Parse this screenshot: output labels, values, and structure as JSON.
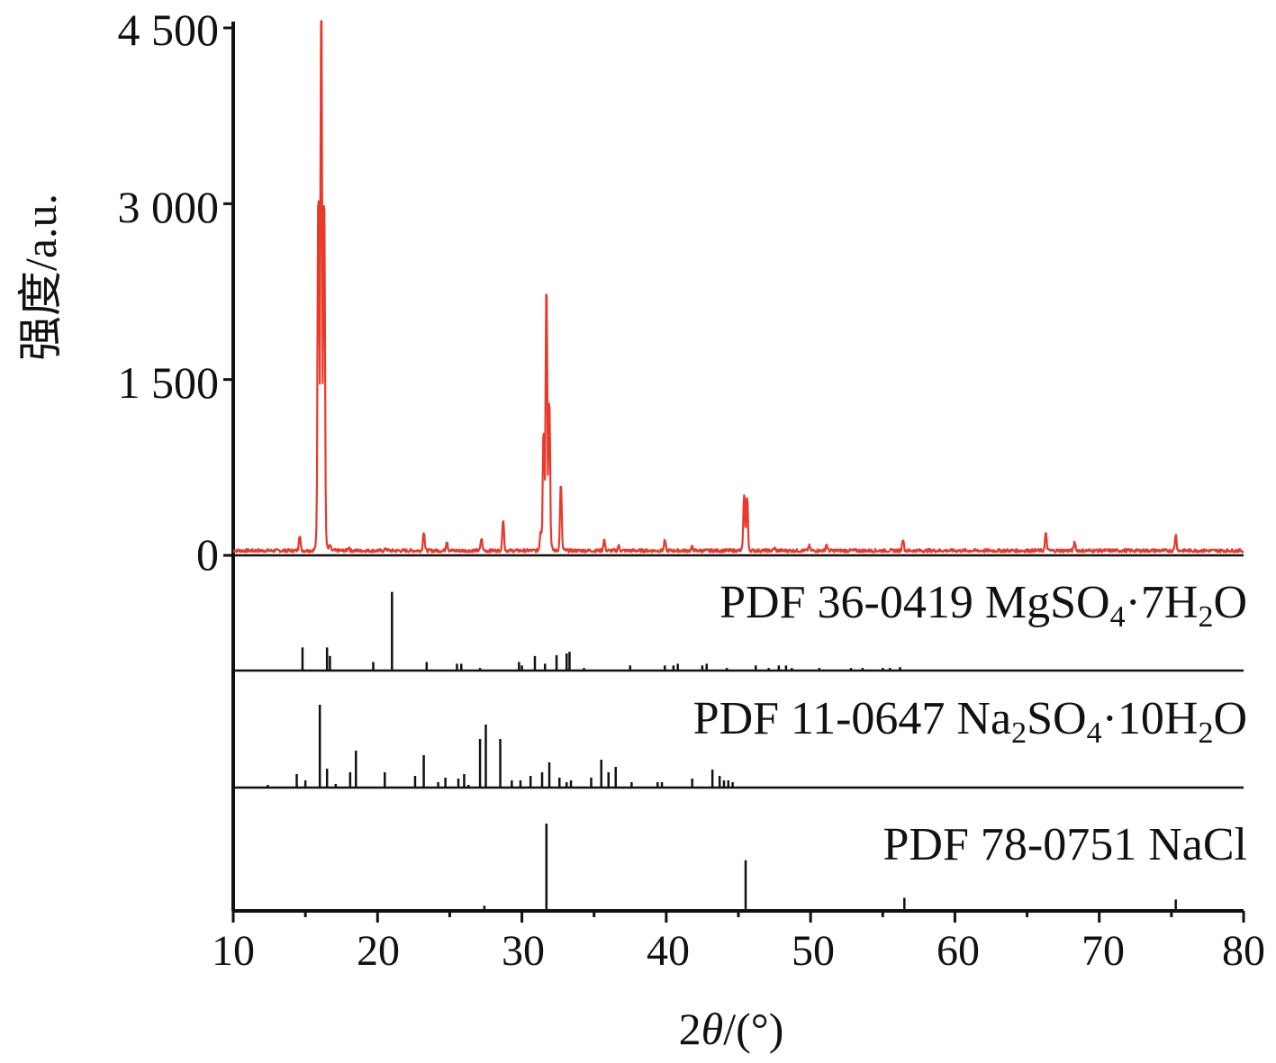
{
  "chart_data": {
    "type": "line",
    "xlabel": {
      "pre": "2",
      "theta": "θ",
      "post": "/(°)"
    },
    "ylabel": "强度/a.u.",
    "xlim": [
      10,
      80
    ],
    "ylim": [
      0,
      4500
    ],
    "x_ticks": [
      "10",
      "20",
      "30",
      "40",
      "50",
      "60",
      "70",
      "80"
    ],
    "y_ticks": [
      "0",
      "1 500",
      "3 000",
      "4 500"
    ],
    "colors": {
      "sample": "#e8392b",
      "reference": "#111111"
    },
    "sample": {
      "baseline": 40,
      "peaks": [
        [
          14.6,
          170
        ],
        [
          15.9,
          2950
        ],
        [
          16.1,
          4500
        ],
        [
          16.3,
          2900
        ],
        [
          16.7,
          80
        ],
        [
          18.0,
          70
        ],
        [
          20.6,
          60
        ],
        [
          23.2,
          200
        ],
        [
          24.8,
          120
        ],
        [
          27.2,
          140
        ],
        [
          28.7,
          300
        ],
        [
          31.3,
          190
        ],
        [
          31.5,
          1000
        ],
        [
          31.7,
          2200
        ],
        [
          31.9,
          1250
        ],
        [
          32.7,
          580
        ],
        [
          35.7,
          130
        ],
        [
          36.7,
          80
        ],
        [
          39.9,
          120
        ],
        [
          41.8,
          70
        ],
        [
          45.4,
          500
        ],
        [
          45.6,
          480
        ],
        [
          47.5,
          60
        ],
        [
          49.9,
          80
        ],
        [
          51.1,
          90
        ],
        [
          56.4,
          140
        ],
        [
          62.5,
          40
        ],
        [
          66.3,
          180
        ],
        [
          68.3,
          110
        ],
        [
          75.3,
          170
        ]
      ]
    },
    "references": [
      {
        "label": {
          "pre": "PDF 36-0419 MgSO",
          "sub1": "4",
          "mid": "·7H",
          "sub2": "2",
          "post": "O"
        },
        "sticks": [
          [
            14.8,
            27
          ],
          [
            16.5,
            27
          ],
          [
            16.7,
            17
          ],
          [
            19.7,
            10
          ],
          [
            21.0,
            92
          ],
          [
            23.4,
            10
          ],
          [
            25.5,
            8
          ],
          [
            25.8,
            8
          ],
          [
            27.1,
            3
          ],
          [
            29.8,
            10
          ],
          [
            30.0,
            6
          ],
          [
            30.9,
            17
          ],
          [
            31.6,
            8
          ],
          [
            32.4,
            18
          ],
          [
            33.1,
            20
          ],
          [
            33.3,
            22
          ],
          [
            34.3,
            3
          ],
          [
            37.5,
            6
          ],
          [
            39.9,
            6
          ],
          [
            40.5,
            6
          ],
          [
            40.8,
            8
          ],
          [
            42.5,
            6
          ],
          [
            42.8,
            8
          ],
          [
            44.2,
            3
          ],
          [
            46.2,
            6
          ],
          [
            47.1,
            3
          ],
          [
            47.8,
            6
          ],
          [
            48.3,
            6
          ],
          [
            48.7,
            3
          ],
          [
            50.6,
            3
          ],
          [
            52.8,
            3
          ],
          [
            53.6,
            3
          ],
          [
            55.0,
            3
          ],
          [
            55.5,
            3
          ],
          [
            56.2,
            4
          ]
        ]
      },
      {
        "label": {
          "pre": "PDF 11-0647 Na",
          "sub1": "2",
          "mid": "SO",
          "sub2": "4",
          "mid2": "·10H",
          "sub3": "2",
          "post": "O"
        },
        "sticks": [
          [
            12.4,
            3
          ],
          [
            14.4,
            15
          ],
          [
            15.0,
            8
          ],
          [
            16.0,
            92
          ],
          [
            16.5,
            21
          ],
          [
            17.1,
            4
          ],
          [
            18.1,
            17
          ],
          [
            18.5,
            41
          ],
          [
            20.5,
            17
          ],
          [
            22.6,
            13
          ],
          [
            23.2,
            36
          ],
          [
            24.2,
            6
          ],
          [
            24.7,
            11
          ],
          [
            25.6,
            10
          ],
          [
            26.0,
            15
          ],
          [
            26.3,
            3
          ],
          [
            27.1,
            54
          ],
          [
            27.5,
            70
          ],
          [
            28.5,
            54
          ],
          [
            29.3,
            8
          ],
          [
            29.9,
            8
          ],
          [
            30.6,
            13
          ],
          [
            31.4,
            17
          ],
          [
            31.9,
            28
          ],
          [
            32.6,
            11
          ],
          [
            33.1,
            6
          ],
          [
            33.4,
            8
          ],
          [
            34.8,
            11
          ],
          [
            35.5,
            31
          ],
          [
            36.0,
            17
          ],
          [
            36.5,
            23
          ],
          [
            37.6,
            6
          ],
          [
            39.4,
            6
          ],
          [
            39.7,
            6
          ],
          [
            41.8,
            10
          ],
          [
            43.2,
            20
          ],
          [
            43.7,
            13
          ],
          [
            44.0,
            8
          ],
          [
            44.3,
            8
          ],
          [
            44.6,
            6
          ]
        ]
      },
      {
        "label": {
          "pre": "PDF 78-0751 NaCl"
        },
        "sticks": [
          [
            27.4,
            6
          ],
          [
            31.7,
            100
          ],
          [
            45.5,
            58
          ],
          [
            56.5,
            15
          ],
          [
            75.3,
            13
          ]
        ]
      }
    ]
  }
}
